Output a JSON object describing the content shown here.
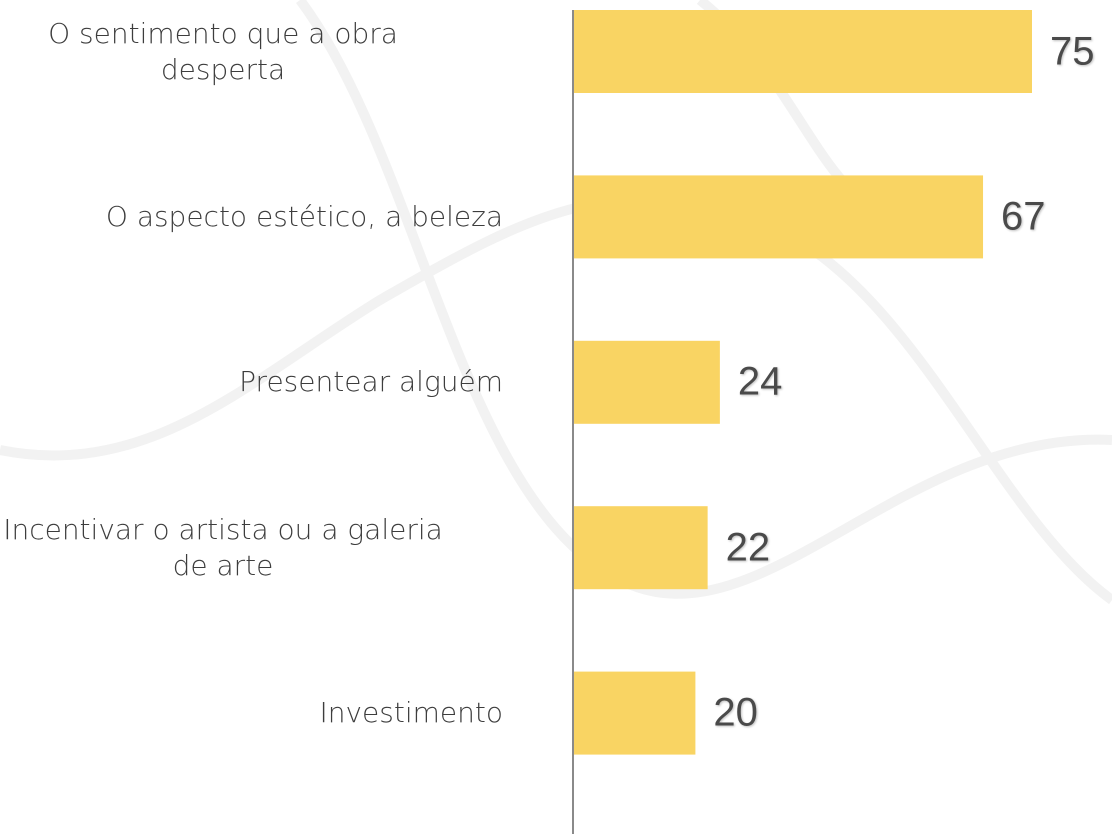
{
  "chart_data": {
    "type": "bar",
    "orientation": "horizontal",
    "categories": [
      "O sentimento que a obra\ndesperta",
      "O aspecto estético, a beleza",
      "Presentear alguém",
      "Incentivar o artista ou a galeria\nde arte",
      "Investimento"
    ],
    "values": [
      75,
      67,
      24,
      22,
      20
    ],
    "color": "#f9d463"
  }
}
